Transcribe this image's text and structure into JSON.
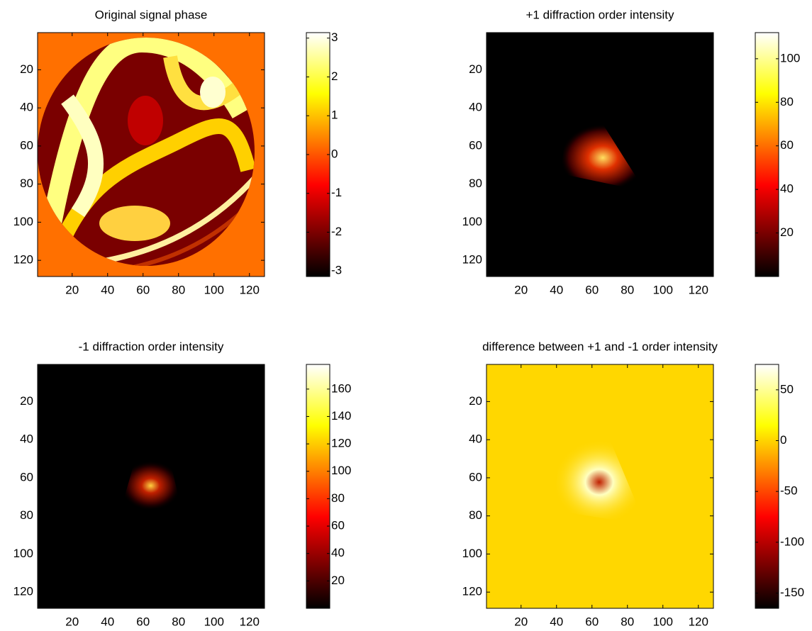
{
  "chart_data": [
    {
      "type": "heatmap",
      "title": "Original signal phase",
      "colormap": "hot",
      "xlim": [
        0.5,
        128.5
      ],
      "xticks": [
        20,
        40,
        60,
        80,
        100,
        120
      ],
      "ylim": [
        128.5,
        0.5
      ],
      "yticks": [
        20,
        40,
        60,
        80,
        100,
        120
      ],
      "clim": [
        -3.1416,
        3.1416
      ],
      "cticks": [
        -3,
        -2,
        -1,
        0,
        1,
        2,
        3
      ]
    },
    {
      "type": "heatmap",
      "title": "+1 diffraction order intensity",
      "colormap": "hot",
      "xlim": [
        0.5,
        128.5
      ],
      "xticks": [
        20,
        40,
        60,
        80,
        100,
        120
      ],
      "ylim": [
        128.5,
        0.5
      ],
      "yticks": [
        20,
        40,
        60,
        80,
        100,
        120
      ],
      "clim": [
        0,
        112
      ],
      "cticks": [
        20,
        40,
        60,
        80,
        100
      ]
    },
    {
      "type": "heatmap",
      "title": "-1 diffraction order intensity",
      "colormap": "hot",
      "xlim": [
        0.5,
        128.5
      ],
      "xticks": [
        20,
        40,
        60,
        80,
        100,
        120
      ],
      "ylim": [
        128.5,
        0.5
      ],
      "yticks": [
        20,
        40,
        60,
        80,
        100,
        120
      ],
      "clim": [
        0,
        178
      ],
      "cticks": [
        20,
        40,
        60,
        80,
        100,
        120,
        140,
        160
      ]
    },
    {
      "type": "heatmap",
      "title": "difference between +1 and -1 order intensity",
      "colormap": "hot",
      "xlim": [
        0.5,
        128.5
      ],
      "xticks": [
        20,
        40,
        60,
        80,
        100,
        120
      ],
      "ylim": [
        128.5,
        0.5
      ],
      "yticks": [
        20,
        40,
        60,
        80,
        100,
        120
      ],
      "clim": [
        -165,
        75
      ],
      "cticks": [
        -150,
        -100,
        -50,
        0,
        50
      ]
    }
  ]
}
